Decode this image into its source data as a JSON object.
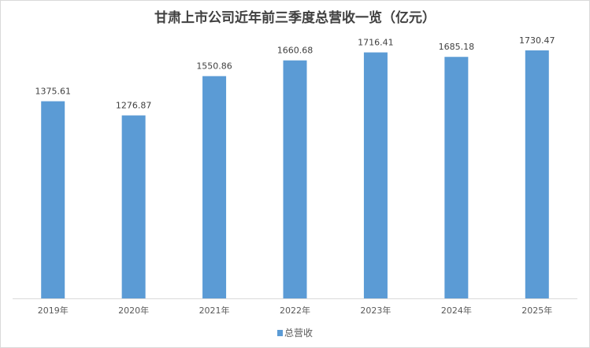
{
  "chart_data": {
    "type": "bar",
    "title": "甘肃上市公司近年前三季度总营收一览（亿元）",
    "categories": [
      "2019年",
      "2020年",
      "2021年",
      "2022年",
      "2023年",
      "2024年",
      "2025年"
    ],
    "series": [
      {
        "name": "总营收",
        "values": [
          1375.61,
          1276.87,
          1550.86,
          1660.68,
          1716.41,
          1685.18,
          1730.47
        ]
      }
    ],
    "data_labels": [
      "1375.61",
      "1276.87",
      "1550.86",
      "1660.68",
      "1716.41",
      "1685.18",
      "1730.47"
    ],
    "ylim": [
      0,
      1730.47
    ],
    "grid": false,
    "legend": "bottom",
    "colors": {
      "bar": "#5b9bd5",
      "axis": "#d9d9d9",
      "text": "#404040"
    }
  }
}
